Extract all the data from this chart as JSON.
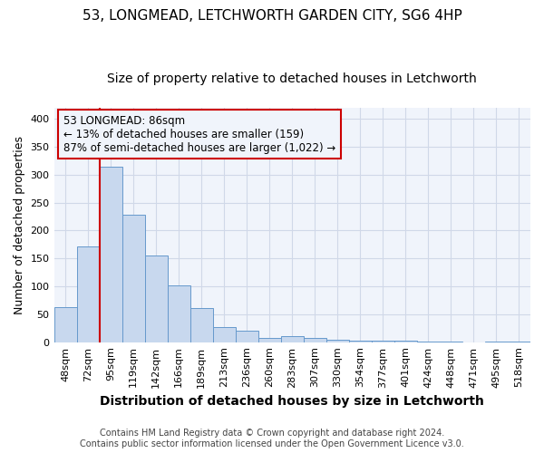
{
  "title": "53, LONGMEAD, LETCHWORTH GARDEN CITY, SG6 4HP",
  "subtitle": "Size of property relative to detached houses in Letchworth",
  "xlabel": "Distribution of detached houses by size in Letchworth",
  "ylabel": "Number of detached properties",
  "bar_color": "#c8d8ee",
  "bar_edge_color": "#6699cc",
  "categories": [
    "48sqm",
    "72sqm",
    "95sqm",
    "119sqm",
    "142sqm",
    "166sqm",
    "189sqm",
    "213sqm",
    "236sqm",
    "260sqm",
    "283sqm",
    "307sqm",
    "330sqm",
    "354sqm",
    "377sqm",
    "401sqm",
    "424sqm",
    "448sqm",
    "471sqm",
    "495sqm",
    "518sqm"
  ],
  "values": [
    63,
    172,
    314,
    229,
    156,
    102,
    61,
    27,
    21,
    8,
    11,
    7,
    5,
    3,
    2,
    2,
    1,
    1,
    0,
    1,
    1
  ],
  "ylim": [
    0,
    420
  ],
  "yticks": [
    0,
    50,
    100,
    150,
    200,
    250,
    300,
    350,
    400
  ],
  "vline_color": "#cc0000",
  "annotation_text": "53 LONGMEAD: 86sqm\n← 13% of detached houses are smaller (159)\n87% of semi-detached houses are larger (1,022) →",
  "footer_line1": "Contains HM Land Registry data © Crown copyright and database right 2024.",
  "footer_line2": "Contains public sector information licensed under the Open Government Licence v3.0.",
  "background_color": "#ffffff",
  "plot_bg_color": "#f0f4fb",
  "grid_color": "#d0d8e8",
  "title_fontsize": 11,
  "subtitle_fontsize": 10,
  "tick_fontsize": 8,
  "ylabel_fontsize": 9,
  "xlabel_fontsize": 10,
  "footer_fontsize": 7,
  "annotation_fontsize": 8.5
}
